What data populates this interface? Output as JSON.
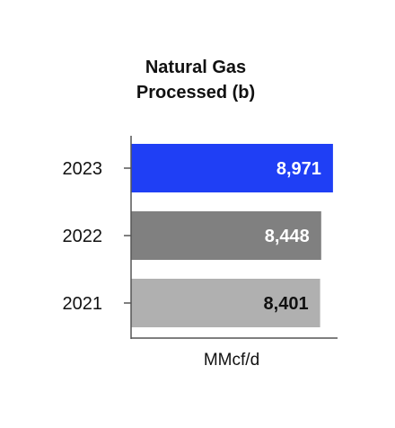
{
  "chart_data": {
    "type": "bar",
    "orientation": "horizontal",
    "title_lines": [
      "Natural Gas",
      "Processed (b)"
    ],
    "categories": [
      "2023",
      "2022",
      "2021"
    ],
    "values": [
      8971,
      8448,
      8401
    ],
    "value_labels": [
      "8,971",
      "8,448",
      "8,401"
    ],
    "xlabel": "MMcf/d",
    "colors": [
      "#1f3ff5",
      "#808080",
      "#b0b0b0"
    ],
    "label_colors": [
      "#ffffff",
      "#ffffff",
      "#111111"
    ],
    "grid": false,
    "legend": "none"
  }
}
